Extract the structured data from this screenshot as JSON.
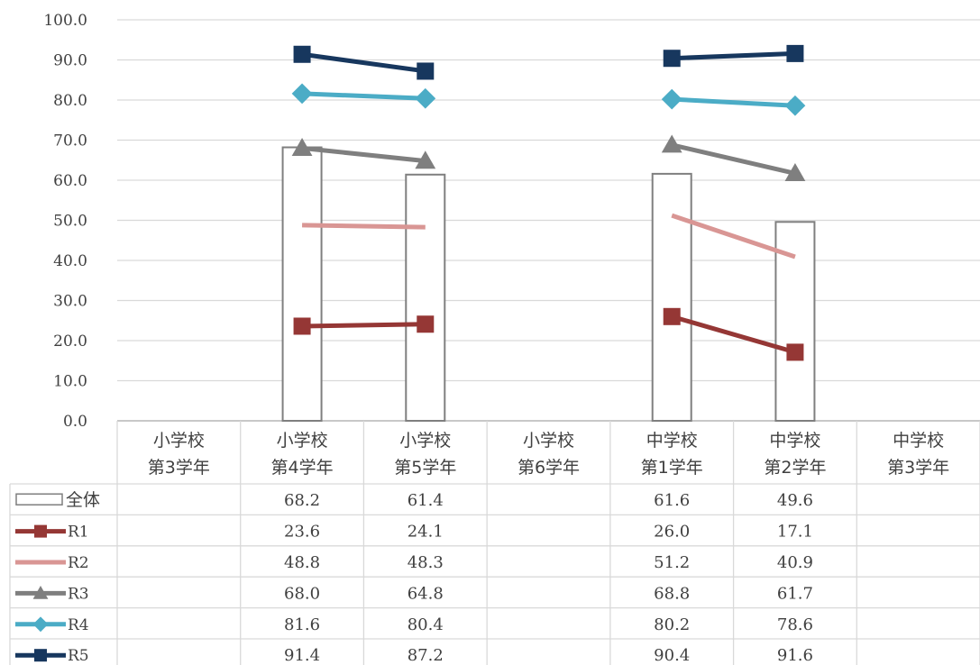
{
  "chart_data": {
    "type": "bar+line",
    "ylim": [
      0,
      100
    ],
    "ytick_labels": [
      "0.0",
      "10.0",
      "20.0",
      "30.0",
      "40.0",
      "50.0",
      "60.0",
      "70.0",
      "80.0",
      "90.0",
      "100.0"
    ],
    "yticks": [
      0,
      10,
      20,
      30,
      40,
      50,
      60,
      70,
      80,
      90,
      100
    ],
    "grid": true,
    "categories": [
      [
        "小学校",
        "第3学年"
      ],
      [
        "小学校",
        "第4学年"
      ],
      [
        "小学校",
        "第5学年"
      ],
      [
        "小学校",
        "第6学年"
      ],
      [
        "中学校",
        "第1学年"
      ],
      [
        "中学校",
        "第2学年"
      ],
      [
        "中学校",
        "第3学年"
      ]
    ],
    "series": [
      {
        "name": "全体",
        "kind": "bar",
        "color": "#7f7f7f",
        "marker": "none",
        "values": [
          null,
          68.2,
          61.4,
          null,
          61.6,
          49.6,
          null
        ],
        "labels": [
          "",
          "68.2",
          "61.4",
          "",
          "61.6",
          "49.6",
          ""
        ]
      },
      {
        "name": "R1",
        "kind": "line",
        "color": "#953735",
        "marker": "square",
        "values": [
          null,
          23.6,
          24.1,
          null,
          26.0,
          17.1,
          null
        ],
        "labels": [
          "",
          "23.6",
          "24.1",
          "",
          "26.0",
          "17.1",
          ""
        ]
      },
      {
        "name": "R2",
        "kind": "line",
        "color": "#d99694",
        "marker": "none",
        "values": [
          null,
          48.8,
          48.3,
          null,
          51.2,
          40.9,
          null
        ],
        "labels": [
          "",
          "48.8",
          "48.3",
          "",
          "51.2",
          "40.9",
          ""
        ]
      },
      {
        "name": "R3",
        "kind": "line",
        "color": "#7f7f7f",
        "marker": "triangle",
        "values": [
          null,
          68.0,
          64.8,
          null,
          68.8,
          61.7,
          null
        ],
        "labels": [
          "",
          "68.0",
          "64.8",
          "",
          "68.8",
          "61.7",
          ""
        ]
      },
      {
        "name": "R4",
        "kind": "line",
        "color": "#4bacc6",
        "marker": "diamond",
        "values": [
          null,
          81.6,
          80.4,
          null,
          80.2,
          78.6,
          null
        ],
        "labels": [
          "",
          "81.6",
          "80.4",
          "",
          "80.2",
          "78.6",
          ""
        ]
      },
      {
        "name": "R5",
        "kind": "line",
        "color": "#17375e",
        "marker": "square",
        "values": [
          null,
          91.4,
          87.2,
          null,
          90.4,
          91.6,
          null
        ],
        "labels": [
          "",
          "91.4",
          "87.2",
          "",
          "90.4",
          "91.6",
          ""
        ]
      }
    ]
  }
}
